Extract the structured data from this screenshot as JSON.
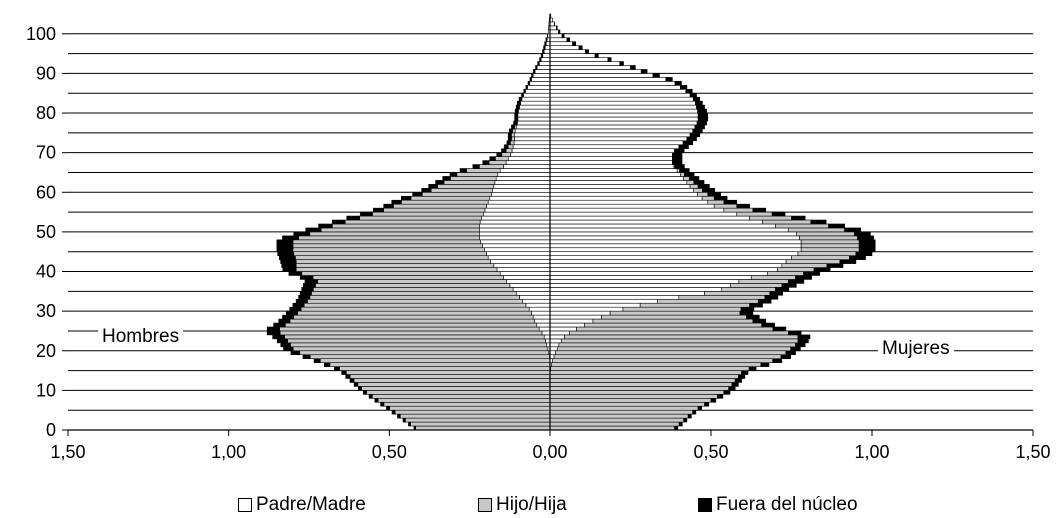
{
  "chart_data": {
    "type": "bar",
    "orientation": "horizontal-population-pyramid",
    "title": "",
    "xlabel": "",
    "ylabel": "",
    "x_ticks": [
      "1,50",
      "1,00",
      "0,50",
      "0,00",
      "0,50",
      "1,00",
      "1,50"
    ],
    "y_ticks": [
      "0",
      "10",
      "20",
      "30",
      "40",
      "50",
      "60",
      "70",
      "80",
      "90",
      "100"
    ],
    "xlim_left": [
      0,
      1.5
    ],
    "xlim_right": [
      0,
      1.5
    ],
    "ylim": [
      0,
      105
    ],
    "grid": "horizontal every 5 years",
    "legend_position": "bottom",
    "side_labels": {
      "left": "Hombres",
      "right": "Mujeres"
    },
    "colors": {
      "padre_madre": "#ffffff",
      "hijo_hija": "#c8c8c8",
      "fuera_nucleo": "#000000"
    },
    "age_points": [
      0,
      5,
      10,
      15,
      18,
      20,
      22,
      24,
      25,
      27,
      30,
      33,
      35,
      38,
      40,
      43,
      45,
      48,
      50,
      52,
      54,
      56,
      58,
      60,
      63,
      65,
      67,
      70,
      73,
      75,
      78,
      80,
      83,
      85,
      88,
      90,
      93,
      95,
      98,
      100,
      103,
      105
    ],
    "series": [
      {
        "name": "Padre/Madre",
        "side": "Hombres",
        "values": [
          0,
          0,
          0,
          0,
          0,
          0.005,
          0.012,
          0.02,
          0.03,
          0.045,
          0.06,
          0.09,
          0.11,
          0.14,
          0.16,
          0.19,
          0.2,
          0.22,
          0.22,
          0.22,
          0.21,
          0.2,
          0.19,
          0.18,
          0.17,
          0.16,
          0.14,
          0.12,
          0.11,
          0.11,
          0.1,
          0.1,
          0.09,
          0.08,
          0.06,
          0.05,
          0.03,
          0.02,
          0.01,
          0.006,
          0.003,
          0
        ]
      },
      {
        "name": "Hijo/Hija",
        "side": "Hombres",
        "values": [
          0.41,
          0.49,
          0.58,
          0.64,
          0.73,
          0.79,
          0.8,
          0.81,
          0.82,
          0.77,
          0.72,
          0.66,
          0.63,
          0.58,
          0.63,
          0.6,
          0.6,
          0.58,
          0.51,
          0.44,
          0.36,
          0.3,
          0.26,
          0.2,
          0.15,
          0.12,
          0.06,
          0.02,
          0.01,
          0.01,
          0,
          0,
          0,
          0,
          0,
          0,
          0,
          0,
          0,
          0,
          0,
          0
        ]
      },
      {
        "name": "Fuera del núcleo",
        "side": "Hombres",
        "values": [
          0.005,
          0.01,
          0.01,
          0.015,
          0.02,
          0.03,
          0.03,
          0.04,
          0.04,
          0.035,
          0.035,
          0.035,
          0.035,
          0.04,
          0.04,
          0.05,
          0.05,
          0.05,
          0.05,
          0.04,
          0.04,
          0.03,
          0.03,
          0.03,
          0.025,
          0.02,
          0.02,
          0.015,
          0.01,
          0.01,
          0.01,
          0.01,
          0.01,
          0.005,
          0.005,
          0.005,
          0.005,
          0.005,
          0.005,
          0,
          0,
          0
        ]
      },
      {
        "name": "Padre/Madre",
        "side": "Mujeres",
        "values": [
          0,
          0,
          0,
          0,
          0.01,
          0.02,
          0.03,
          0.05,
          0.07,
          0.12,
          0.2,
          0.36,
          0.52,
          0.6,
          0.7,
          0.74,
          0.78,
          0.78,
          0.76,
          0.68,
          0.6,
          0.52,
          0.48,
          0.45,
          0.42,
          0.4,
          0.38,
          0.38,
          0.42,
          0.44,
          0.46,
          0.46,
          0.45,
          0.43,
          0.38,
          0.3,
          0.2,
          0.12,
          0.06,
          0.03,
          0.01,
          0
        ]
      },
      {
        "name": "Hijo/Hija",
        "side": "Mujeres",
        "values": [
          0.38,
          0.45,
          0.55,
          0.6,
          0.7,
          0.72,
          0.74,
          0.72,
          0.64,
          0.52,
          0.38,
          0.3,
          0.17,
          0.15,
          0.1,
          0.18,
          0.18,
          0.18,
          0.18,
          0.16,
          0.12,
          0.08,
          0.04,
          0.03,
          0.02,
          0.01,
          0,
          0,
          0,
          0,
          0,
          0,
          0,
          0,
          0,
          0,
          0,
          0,
          0,
          0,
          0,
          0
        ]
      },
      {
        "name": "Fuera del núcleo",
        "side": "Mujeres",
        "values": [
          0.01,
          0.01,
          0.02,
          0.02,
          0.03,
          0.03,
          0.03,
          0.04,
          0.04,
          0.04,
          0.04,
          0.04,
          0.04,
          0.05,
          0.05,
          0.05,
          0.05,
          0.05,
          0.05,
          0.05,
          0.04,
          0.04,
          0.04,
          0.04,
          0.03,
          0.03,
          0.03,
          0.03,
          0.03,
          0.03,
          0.03,
          0.03,
          0.02,
          0.02,
          0.02,
          0.02,
          0.01,
          0.01,
          0.01,
          0.005,
          0,
          0
        ]
      }
    ],
    "legend": [
      "Padre/Madre",
      "Hijo/Hija",
      "Fuera del núcleo"
    ]
  }
}
